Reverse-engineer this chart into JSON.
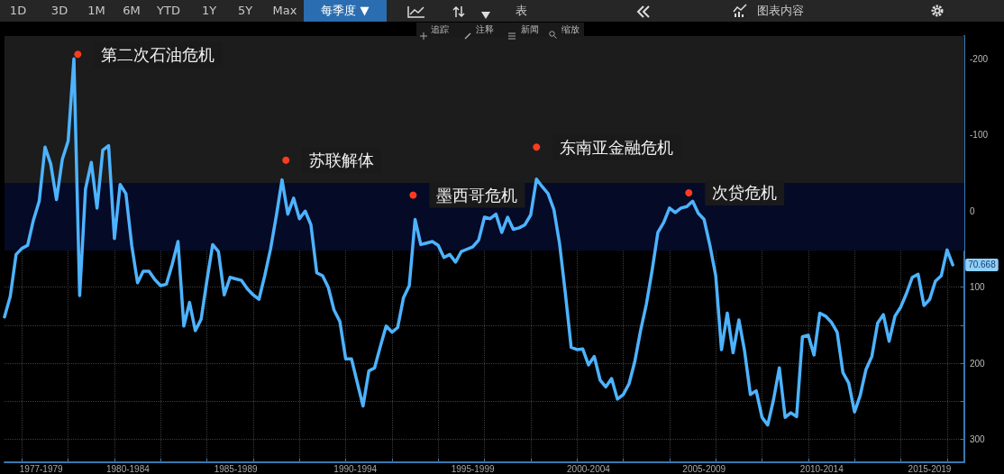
{
  "chart_data": {
    "type": "line",
    "x": [
      "1977-04",
      "1977-07",
      "1977-10",
      "1978-01",
      "1978-04",
      "1978-07",
      "1978-10",
      "1979-01",
      "1979-04",
      "1979-07",
      "1979-10",
      "1980-01",
      "1980-04",
      "1980-07",
      "1980-10",
      "1981-01",
      "1981-04",
      "1981-07",
      "1981-10",
      "1982-01",
      "1982-04",
      "1982-07",
      "1982-10",
      "1983-01",
      "1983-04",
      "1983-07",
      "1983-10",
      "1984-01",
      "1984-04",
      "1984-07",
      "1984-10",
      "1985-01",
      "1985-04",
      "1985-07",
      "1985-10",
      "1986-01",
      "1986-04",
      "1986-07",
      "1986-10",
      "1987-01",
      "1987-04",
      "1987-07",
      "1987-10",
      "1988-01",
      "1988-04",
      "1988-07",
      "1988-10",
      "1989-01",
      "1989-04",
      "1989-07",
      "1989-10",
      "1990-01",
      "1990-04",
      "1990-07",
      "1990-10",
      "1991-01",
      "1991-04",
      "1991-07",
      "1991-10",
      "1992-01",
      "1992-04",
      "1992-07",
      "1992-10",
      "1993-01",
      "1993-04",
      "1993-07",
      "1993-10",
      "1994-01",
      "1994-04",
      "1994-07",
      "1994-10",
      "1995-01",
      "1995-04",
      "1995-07",
      "1995-10",
      "1996-01",
      "1996-04",
      "1996-07",
      "1996-10",
      "1997-01",
      "1997-04",
      "1997-07",
      "1997-10",
      "1998-01",
      "1998-04",
      "1998-07",
      "1998-10",
      "1999-01",
      "1999-04",
      "1999-07",
      "1999-10",
      "2000-01",
      "2000-04",
      "2000-07",
      "2000-10",
      "2001-01",
      "2001-04",
      "2001-07",
      "2001-10",
      "2002-01",
      "2002-04",
      "2002-07",
      "2002-10",
      "2003-01",
      "2003-04",
      "2003-07",
      "2003-10",
      "2004-01",
      "2004-04",
      "2004-07",
      "2004-10",
      "2005-01",
      "2005-04",
      "2005-07",
      "2005-10",
      "2006-01",
      "2006-04",
      "2006-07",
      "2006-10",
      "2007-01",
      "2007-04",
      "2007-07",
      "2007-10",
      "2008-01",
      "2008-04",
      "2008-07",
      "2008-10",
      "2009-01",
      "2009-04",
      "2009-07",
      "2009-10",
      "2010-01",
      "2010-04",
      "2010-07",
      "2010-10",
      "2011-01",
      "2011-04",
      "2011-07",
      "2011-10",
      "2012-01",
      "2012-04",
      "2012-07",
      "2012-10",
      "2013-01",
      "2013-04",
      "2013-07",
      "2013-10",
      "2014-01",
      "2014-04",
      "2014-07",
      "2014-10",
      "2015-01",
      "2015-04",
      "2015-07",
      "2015-10",
      "2016-01",
      "2016-04",
      "2016-07",
      "2016-10",
      "2017-01",
      "2017-04",
      "2017-07",
      "2017-10",
      "2018-01",
      "2018-04"
    ],
    "series": [
      {
        "color": "#4db3ff",
        "values": [
          139,
          112,
          57,
          49,
          45,
          12,
          -13,
          -84,
          -62,
          -15,
          -68,
          -92,
          -200,
          111,
          -29,
          -64,
          -4,
          -80,
          -86,
          36,
          -35,
          -23,
          45,
          94,
          79,
          79,
          90,
          98,
          96,
          70,
          40,
          151,
          120,
          157,
          142,
          91,
          44,
          53,
          110,
          87,
          89,
          91,
          102,
          110,
          116,
          85,
          50,
          6,
          -41,
          4,
          -17,
          10,
          0,
          18,
          81,
          85,
          100,
          130,
          145,
          194,
          194,
          225,
          256,
          210,
          206,
          178,
          151,
          159,
          153,
          114,
          98,
          11,
          44,
          42,
          40,
          45,
          61,
          57,
          67,
          53,
          50,
          47,
          38,
          8,
          10,
          4,
          28,
          8,
          24,
          22,
          18,
          5,
          -42,
          -32,
          -23,
          -2,
          43,
          108,
          179,
          182,
          181,
          202,
          191,
          222,
          231,
          220,
          247,
          241,
          227,
          198,
          157,
          122,
          78,
          28,
          15,
          -4,
          2,
          -4,
          -6,
          -13,
          3,
          11,
          45,
          85,
          182,
          134,
          186,
          143,
          184,
          241,
          236,
          271,
          281,
          248,
          206,
          271,
          265,
          270,
          165,
          163,
          189,
          134,
          138,
          146,
          159,
          212,
          226,
          264,
          242,
          208,
          191,
          147,
          136,
          171,
          138,
          126,
          108,
          87,
          83,
          124,
          116,
          92,
          85,
          51,
          70.668
        ],
        "value_labels": [
          null,
          null,
          null,
          null,
          null,
          null,
          null,
          null,
          null,
          null,
          null,
          null,
          null,
          null,
          null,
          null,
          null,
          null,
          null,
          null,
          null,
          null,
          null,
          null,
          null,
          null,
          null,
          null,
          null,
          null,
          null,
          null,
          null,
          null,
          null,
          null,
          null,
          null,
          null,
          null,
          null,
          null,
          null,
          null,
          null,
          null,
          null,
          null,
          null,
          null,
          null,
          null,
          null,
          null,
          null,
          null,
          null,
          null,
          null,
          null,
          null,
          null,
          null,
          null,
          null,
          null,
          null,
          null,
          null,
          null,
          null,
          null,
          null,
          null,
          null,
          null,
          null,
          null,
          null,
          null,
          null,
          null,
          null,
          null,
          null,
          null,
          null,
          null,
          null,
          null,
          null,
          null,
          null,
          null,
          null,
          null,
          null,
          null,
          null,
          null,
          null,
          null,
          null,
          null,
          null,
          null,
          null,
          null,
          null,
          null,
          null,
          null,
          null,
          null,
          null,
          null,
          null,
          null,
          null,
          null,
          null,
          null,
          null,
          null,
          null,
          null,
          null,
          null,
          null,
          null,
          null,
          null,
          null,
          null,
          null,
          null,
          null,
          null,
          null,
          null,
          null,
          null,
          null,
          null,
          null,
          null,
          null,
          null,
          null,
          null,
          null,
          null,
          null,
          null,
          null,
          null,
          null,
          null,
          null,
          null,
          null,
          null,
          null,
          null,
          "70.668"
        ]
      }
    ],
    "xlim": [
      "1977-04",
      "2018-10"
    ],
    "xticks": [
      {
        "value": "1978-01",
        "label": null
      },
      {
        "value": "1980-01",
        "label": null
      },
      {
        "value": "1982-01",
        "label": null
      },
      {
        "value": "1984-01",
        "label": null
      },
      {
        "value": "1986-01",
        "label": null
      },
      {
        "value": "1988-01",
        "label": null
      },
      {
        "value": "1990-01",
        "label": null
      },
      {
        "value": "1992-01",
        "label": null
      },
      {
        "value": "1994-01",
        "label": null
      },
      {
        "value": "1996-01",
        "label": null
      },
      {
        "value": "1998-01",
        "label": null
      },
      {
        "value": "2000-01",
        "label": null
      },
      {
        "value": "2002-01",
        "label": null
      },
      {
        "value": "2004-01",
        "label": null
      },
      {
        "value": "2006-01",
        "label": null
      },
      {
        "value": "2008-01",
        "label": null
      },
      {
        "value": "2010-01",
        "label": null
      },
      {
        "value": "2012-01",
        "label": null
      },
      {
        "value": "2014-01",
        "label": null
      },
      {
        "value": "2016-01",
        "label": null
      },
      {
        "value": "2018-01",
        "label": null
      },
      {
        "value": "1978-11",
        "label": "1977-1979"
      },
      {
        "value": "1982-08",
        "label": "1980-1984"
      },
      {
        "value": "1987-04",
        "label": "1985-1989"
      },
      {
        "value": "1992-06",
        "label": "1990-1994"
      },
      {
        "value": "1997-07",
        "label": "1995-1999"
      },
      {
        "value": "2002-07",
        "label": "2000-2004"
      },
      {
        "value": "2007-07",
        "label": "2005-2009"
      },
      {
        "value": "2012-08",
        "label": "2010-2014"
      },
      {
        "value": "2017-04",
        "label": "2015-2019"
      }
    ],
    "ylim": [
      330,
      -230
    ],
    "yticks": [
      -200,
      {
        "value": -150,
        "label": null
      },
      -100,
      {
        "value": -50,
        "label": null
      },
      0,
      {
        "value": 50,
        "label": null
      },
      100,
      {
        "value": 150,
        "label": null
      },
      200,
      {
        "value": 250,
        "label": null
      },
      300
    ],
    "grid": true,
    "marker": "none",
    "line_style": "solid",
    "bands": [
      {
        "axis": "y",
        "from": -230,
        "to": -37,
        "color": "#1c1c1c"
      },
      {
        "axis": "y",
        "from": -37,
        "to": 52,
        "color": "#050a26"
      }
    ],
    "annotations": [
      {
        "text": "第二次石油危机",
        "x": "1980-06",
        "y": -206
      },
      {
        "text": "苏联解体",
        "x": "1989-06",
        "y": -67
      },
      {
        "text": "墨西哥危机",
        "x": "1994-12",
        "y": -21
      },
      {
        "text": "东南亚金融危机",
        "x": "2000-04",
        "y": -84
      },
      {
        "text": "次贷危机",
        "x": "2006-11",
        "y": -24
      },
      "1D",
      "3D",
      "1M",
      "6M",
      "YTD",
      "1Y",
      "5Y",
      "Max",
      "每季度 ▼",
      "表",
      "图表内容",
      "追踪",
      "注释",
      "新闻",
      "缩放"
    ]
  }
}
